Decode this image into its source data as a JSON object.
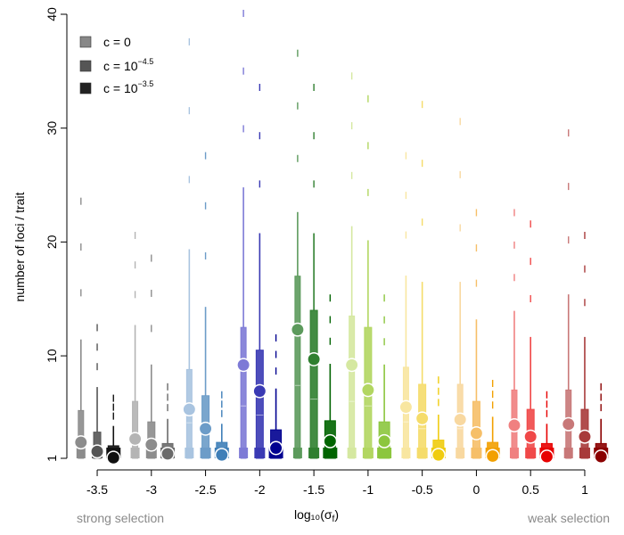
{
  "chart_data": {
    "type": "boxplot",
    "ylabel": "number of loci / trait",
    "xlabel": "log₁₀(σ",
    "xlabel_sub": "f",
    "xlabel_close": ")",
    "xlim": [
      -3.78,
      1.28
    ],
    "ylim": [
      1,
      40
    ],
    "xticks": [
      -3.5,
      -3,
      -2.5,
      -2,
      -1.5,
      -1,
      -0.5,
      0,
      0.5,
      1
    ],
    "xtick_labels": [
      "-3.5",
      "-3",
      "-2.5",
      "-2",
      "-1.5",
      "-1",
      "-0.5",
      "0",
      "0.5",
      "1"
    ],
    "yticks": [
      1,
      10,
      20,
      30,
      40
    ],
    "ytick_labels": [
      "1",
      "10",
      "20",
      "30",
      "40"
    ],
    "annotations": {
      "left": "strong selection",
      "right": "weak selection"
    },
    "legend": {
      "position": "top-left",
      "entries": [
        {
          "base": "c = 0",
          "exp": "",
          "color": "#888888"
        },
        {
          "base": "c = 10",
          "exp": "−4.5",
          "color": "#555555"
        },
        {
          "base": "c = 10",
          "exp": "−3.5",
          "color": "#222222"
        }
      ]
    },
    "groups": [
      {
        "sigma": -3.5,
        "colors": [
          "#8c8c8c",
          "#555555",
          "#111111"
        ],
        "means": [
          2.4,
          1.6,
          1.05
        ],
        "q3": [
          5.2,
          3.3,
          2.1
        ],
        "max": [
          23.5,
          12.4,
          6.2
        ]
      },
      {
        "sigma": -3.0,
        "colors": [
          "#b4b4b4",
          "#8c8c8c",
          "#6a6a6a"
        ],
        "means": [
          2.7,
          2.2,
          1.4
        ],
        "q3": [
          6.0,
          4.2,
          2.3
        ],
        "max": [
          20.5,
          18.5,
          7.2
        ]
      },
      {
        "sigma": -2.5,
        "colors": [
          "#a9c4e0",
          "#6c9cc8",
          "#3f7fb8"
        ],
        "means": [
          5.3,
          3.6,
          1.3
        ],
        "q3": [
          8.8,
          6.5,
          2.4
        ],
        "max": [
          37.5,
          27.5,
          6.5
        ]
      },
      {
        "sigma": -2.0,
        "colors": [
          "#7d7ad6",
          "#3a3ab4",
          "#000090"
        ],
        "means": [
          9.2,
          6.9,
          1.9
        ],
        "q3": [
          12.5,
          10.5,
          3.5
        ],
        "max": [
          40.0,
          33.5,
          11.5
        ]
      },
      {
        "sigma": -1.5,
        "colors": [
          "#5c9a5c",
          "#2f7f2f",
          "#006400"
        ],
        "means": [
          12.3,
          9.7,
          2.5
        ],
        "q3": [
          17.0,
          14.0,
          4.3
        ],
        "max": [
          36.5,
          33.5,
          15.0
        ]
      },
      {
        "sigma": -1.0,
        "colors": [
          "#d5e8a0",
          "#b2d661",
          "#8cc63e"
        ],
        "means": [
          9.2,
          7.0,
          2.5
        ],
        "q3": [
          13.5,
          12.5,
          4.2
        ],
        "max": [
          34.5,
          32.5,
          15.0
        ]
      },
      {
        "sigma": -0.5,
        "colors": [
          "#f8e6a0",
          "#f5dc6a",
          "#f0cc10"
        ],
        "means": [
          5.5,
          4.5,
          1.3
        ],
        "q3": [
          9.0,
          7.5,
          2.6
        ],
        "max": [
          27.5,
          32.0,
          7.8
        ]
      },
      {
        "sigma": 0.0,
        "colors": [
          "#f8d8a0",
          "#f6bf68",
          "#f2a000"
        ],
        "means": [
          4.4,
          3.2,
          1.2
        ],
        "q3": [
          7.5,
          6.0,
          2.4
        ],
        "max": [
          30.5,
          22.5,
          7.5
        ]
      },
      {
        "sigma": 0.5,
        "colors": [
          "#f08080",
          "#f04848",
          "#e80000"
        ],
        "means": [
          3.9,
          2.9,
          1.15
        ],
        "q3": [
          7.0,
          5.3,
          2.3
        ],
        "max": [
          22.5,
          21.5,
          6.5
        ]
      },
      {
        "sigma": 1.0,
        "colors": [
          "#c87878",
          "#a83a3a",
          "#8b0000"
        ],
        "means": [
          4.0,
          2.9,
          1.15
        ],
        "q3": [
          7.0,
          5.3,
          2.3
        ],
        "max": [
          29.5,
          20.5,
          7.2
        ]
      }
    ]
  }
}
